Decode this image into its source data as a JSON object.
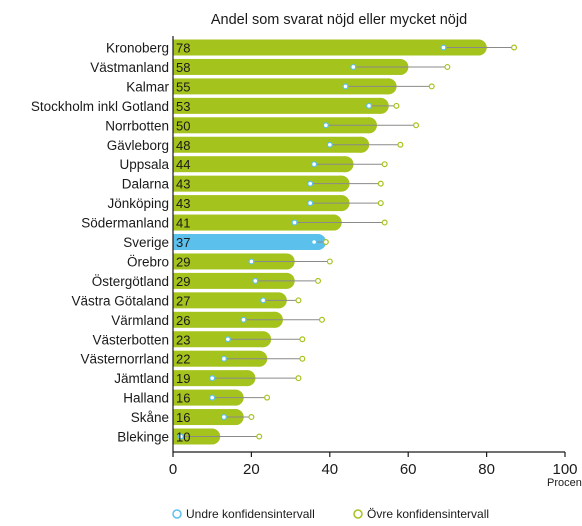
{
  "chart_data": {
    "type": "bar",
    "orientation": "horizontal",
    "title": "Andel som svarat nöjd eller mycket nöjd",
    "xlabel": "Procent",
    "xlim": [
      0,
      100
    ],
    "xticks": [
      "0",
      "20",
      "40",
      "60",
      "80",
      "100"
    ],
    "categories": [
      "Kronoberg",
      "Västmanland",
      "Kalmar",
      "Stockholm inkl Gotland",
      "Norrbotten",
      "Gävleborg",
      "Uppsala",
      "Dalarna",
      "Jönköping",
      "Södermanland",
      "Sverige",
      "Örebro",
      "Östergötland",
      "Västra Götaland",
      "Värmland",
      "Västerbotten",
      "Västernorrland",
      "Jämtland",
      "Halland",
      "Skåne",
      "Blekinge"
    ],
    "values": [
      78,
      58,
      55,
      53,
      50,
      48,
      44,
      43,
      43,
      41,
      37,
      29,
      29,
      27,
      26,
      23,
      22,
      19,
      16,
      16,
      10
    ],
    "ci_lower": [
      69,
      46,
      44,
      50,
      39,
      40,
      36,
      35,
      35,
      31,
      36,
      20,
      21,
      23,
      18,
      14,
      13,
      10,
      10,
      13,
      2
    ],
    "ci_upper": [
      87,
      70,
      66,
      57,
      62,
      58,
      54,
      53,
      53,
      54,
      39,
      40,
      37,
      32,
      38,
      33,
      33,
      32,
      24,
      20,
      22
    ],
    "highlight_category": "Sverige",
    "colors": {
      "bar": "#a5c31d",
      "highlight": "#5bc0ec",
      "lower_marker": "#5bc0ec",
      "upper_marker": "#a5c31d",
      "ci_line": "#8a8a8a"
    },
    "legend": [
      {
        "label": "Undre konfidensintervall",
        "marker": "circle-blue"
      },
      {
        "label": "Övre konfidensintervall",
        "marker": "circle-green"
      }
    ],
    "legend_position": "bottom-right",
    "grid": false
  }
}
